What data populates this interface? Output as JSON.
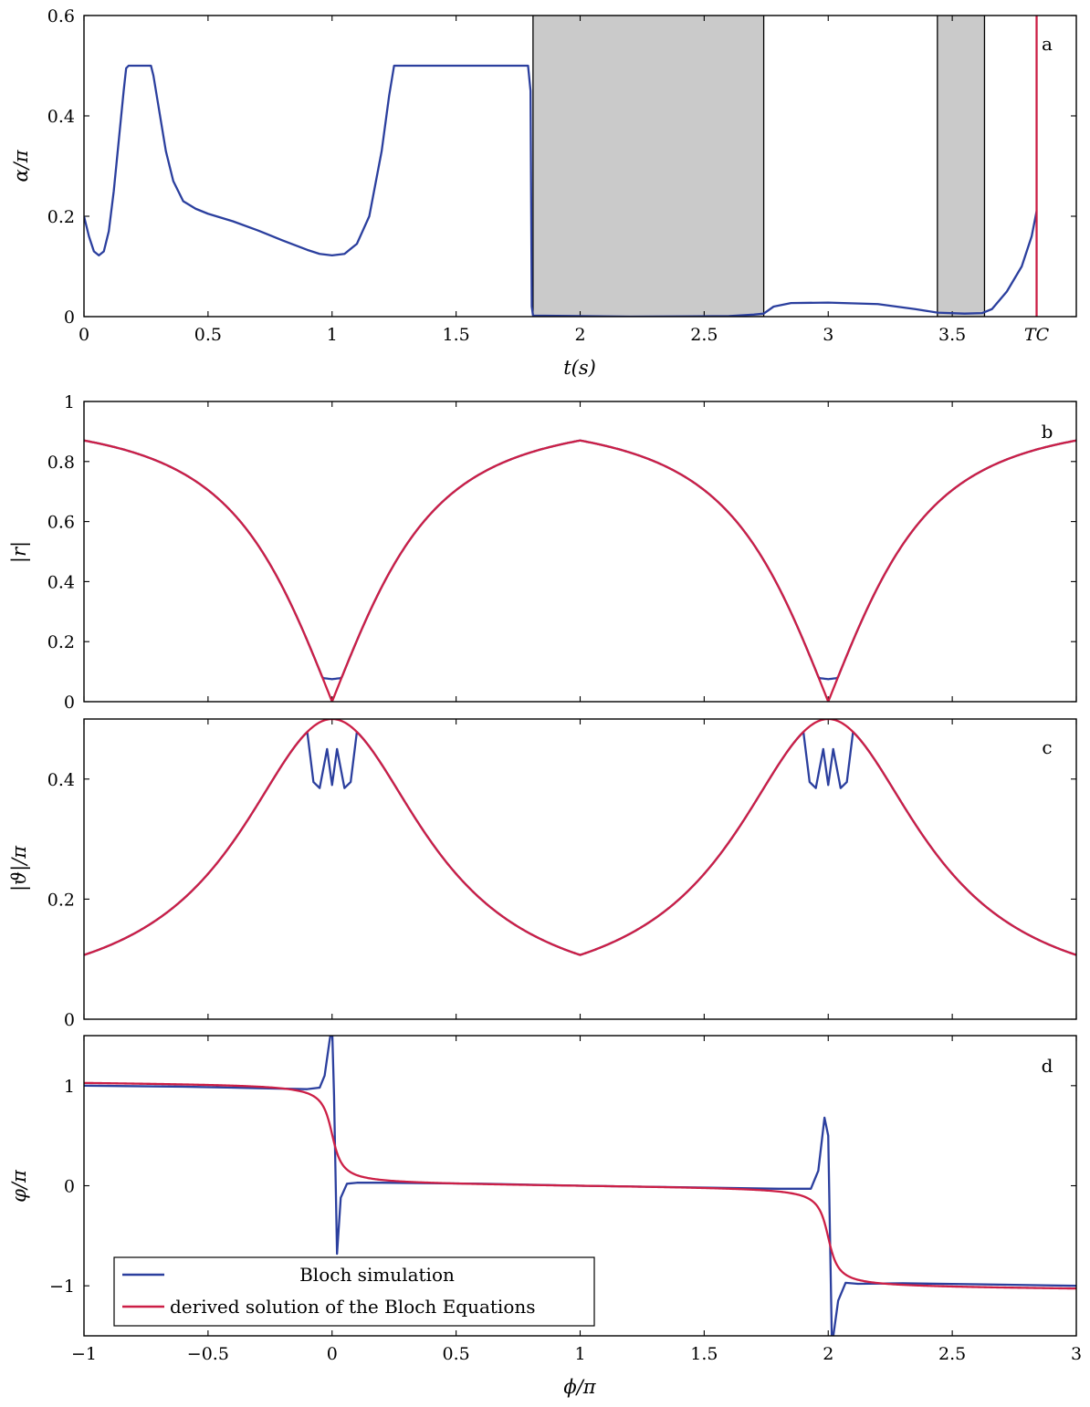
{
  "colors": {
    "blue": "#2b3f9e",
    "red": "#cc1f46",
    "shade": "#cacaca",
    "axis": "#000000"
  },
  "chart_data": [
    {
      "id": "a",
      "type": "line",
      "tag": "a",
      "xlabel": "t(s)",
      "ylabel": "α/π",
      "xlim": [
        0,
        4.0
      ],
      "ylim": [
        0,
        0.6
      ],
      "xticks": [
        0,
        0.5,
        1,
        1.5,
        2,
        2.5,
        3,
        3.5
      ],
      "xtick_labels": [
        "0",
        "0.5",
        "1",
        "1.5",
        "2",
        "2.5",
        "3",
        "3.5"
      ],
      "extra_xtick": {
        "x": 3.84,
        "label": "TC"
      },
      "yticks": [
        0,
        0.2,
        0.4,
        0.6
      ],
      "ytick_labels": [
        "0",
        "0.2",
        "0.4",
        "0.6"
      ],
      "shaded_regions": [
        [
          1.81,
          2.74
        ],
        [
          3.44,
          3.63
        ]
      ],
      "region_boundaries": [
        1.81,
        2.74,
        3.44,
        3.63
      ],
      "vline": 3.84,
      "series": [
        {
          "color": "blue",
          "points": [
            [
              0,
              0.2
            ],
            [
              0.02,
              0.16
            ],
            [
              0.04,
              0.13
            ],
            [
              0.06,
              0.122
            ],
            [
              0.08,
              0.13
            ],
            [
              0.1,
              0.17
            ],
            [
              0.12,
              0.25
            ],
            [
              0.14,
              0.35
            ],
            [
              0.16,
              0.45
            ],
            [
              0.17,
              0.495
            ],
            [
              0.18,
              0.5
            ],
            [
              0.27,
              0.5
            ],
            [
              0.28,
              0.48
            ],
            [
              0.3,
              0.42
            ],
            [
              0.33,
              0.33
            ],
            [
              0.36,
              0.27
            ],
            [
              0.4,
              0.23
            ],
            [
              0.45,
              0.215
            ],
            [
              0.5,
              0.205
            ],
            [
              0.6,
              0.19
            ],
            [
              0.7,
              0.172
            ],
            [
              0.8,
              0.152
            ],
            [
              0.9,
              0.133
            ],
            [
              0.95,
              0.125
            ],
            [
              1.0,
              0.122
            ],
            [
              1.05,
              0.125
            ],
            [
              1.1,
              0.145
            ],
            [
              1.15,
              0.2
            ],
            [
              1.2,
              0.33
            ],
            [
              1.23,
              0.44
            ],
            [
              1.25,
              0.5
            ],
            [
              1.79,
              0.5
            ],
            [
              1.8,
              0.45
            ],
            [
              1.805,
              0.02
            ],
            [
              1.81,
              0.002
            ],
            [
              2.2,
              0.0
            ],
            [
              2.6,
              0.001
            ],
            [
              2.7,
              0.004
            ],
            [
              2.74,
              0.006
            ],
            [
              2.78,
              0.02
            ],
            [
              2.85,
              0.027
            ],
            [
              3.0,
              0.028
            ],
            [
              3.2,
              0.025
            ],
            [
              3.35,
              0.015
            ],
            [
              3.44,
              0.008
            ],
            [
              3.55,
              0.006
            ],
            [
              3.62,
              0.007
            ],
            [
              3.66,
              0.015
            ],
            [
              3.72,
              0.05
            ],
            [
              3.78,
              0.1
            ],
            [
              3.82,
              0.16
            ],
            [
              3.84,
              0.21
            ]
          ]
        }
      ]
    },
    {
      "id": "b",
      "type": "line",
      "tag": "b",
      "ylabel": "|r|",
      "xlim": [
        -1,
        3
      ],
      "ylim": [
        0,
        1
      ],
      "xticks": [
        -1,
        -0.5,
        0,
        0.5,
        1,
        1.5,
        2,
        2.5,
        3
      ],
      "yticks": [
        0,
        0.2,
        0.4,
        0.6,
        0.8,
        1
      ],
      "ytick_labels": [
        "0",
        "0.2",
        "0.4",
        "0.6",
        "0.8",
        "1"
      ],
      "series": [
        {
          "name": "Bloch simulation",
          "color": "blue",
          "model": "r",
          "A": 0.87,
          "k": 0.46,
          "floor": 0.075
        },
        {
          "name": "derived solution of the Bloch Equations",
          "color": "red",
          "model": "r",
          "A": 0.87,
          "k": 0.46,
          "floor": 0
        }
      ]
    },
    {
      "id": "c",
      "type": "line",
      "tag": "c",
      "ylabel": "|ϑ|/π",
      "xlim": [
        -1,
        3
      ],
      "ylim": [
        0,
        0.5
      ],
      "xticks": [
        -1,
        -0.5,
        0,
        0.5,
        1,
        1.5,
        2,
        2.5,
        3
      ],
      "yticks": [
        0,
        0.2,
        0.4
      ],
      "ytick_labels": [
        "0",
        "0.2",
        "0.4"
      ],
      "series": [
        {
          "name": "Bloch simulation",
          "color": "blue",
          "model": "theta",
          "lo": 0.107,
          "hi": 0.5,
          "k": 0.46,
          "spikes": true
        },
        {
          "name": "derived solution of the Bloch Equations",
          "color": "red",
          "model": "theta",
          "lo": 0.107,
          "hi": 0.5,
          "k": 0.46,
          "spikes": false
        }
      ]
    },
    {
      "id": "d",
      "type": "line",
      "tag": "d",
      "xlabel": "ϕ/π",
      "ylabel": "φ/π",
      "xlim": [
        -1,
        3
      ],
      "ylim": [
        -1.5,
        1.5
      ],
      "xticks": [
        -1,
        -0.5,
        0,
        0.5,
        1,
        1.5,
        2,
        2.5,
        3
      ],
      "xtick_labels": [
        "−1",
        "−0.5",
        "0",
        "0.5",
        "1",
        "1.5",
        "2",
        "2.5",
        "3"
      ],
      "yticks": [
        -1,
        0,
        1
      ],
      "ytick_labels": [
        "−1",
        "0",
        "1"
      ],
      "legend": {
        "position": "bottom-left",
        "entries": [
          "Bloch simulation",
          "derived solution of the Bloch Equations"
        ]
      },
      "series": [
        {
          "name": "Bloch simulation",
          "color": "blue",
          "points": [
            [
              -1,
              1.0
            ],
            [
              -0.6,
              0.99
            ],
            [
              -0.3,
              0.975
            ],
            [
              -0.1,
              0.965
            ],
            [
              -0.05,
              0.98
            ],
            [
              -0.03,
              1.1
            ],
            [
              -0.01,
              1.45
            ],
            [
              0.0,
              1.6
            ],
            [
              0.008,
              0.9
            ],
            [
              0.02,
              -0.68
            ],
            [
              0.035,
              -0.12
            ],
            [
              0.06,
              0.02
            ],
            [
              0.1,
              0.03
            ],
            [
              0.2,
              0.03
            ],
            [
              0.6,
              0.02
            ],
            [
              1.0,
              0.0
            ],
            [
              1.4,
              -0.015
            ],
            [
              1.8,
              -0.03
            ],
            [
              1.88,
              -0.03
            ],
            [
              1.93,
              -0.03
            ],
            [
              1.96,
              0.15
            ],
            [
              1.985,
              0.68
            ],
            [
              2.0,
              0.5
            ],
            [
              2.015,
              -1.6
            ],
            [
              2.04,
              -1.15
            ],
            [
              2.07,
              -0.97
            ],
            [
              2.12,
              -0.98
            ],
            [
              2.3,
              -0.975
            ],
            [
              2.6,
              -0.985
            ],
            [
              3.0,
              -1.0
            ]
          ]
        },
        {
          "name": "derived solution of the Bloch Equations",
          "color": "red",
          "model": "phase"
        }
      ]
    }
  ]
}
